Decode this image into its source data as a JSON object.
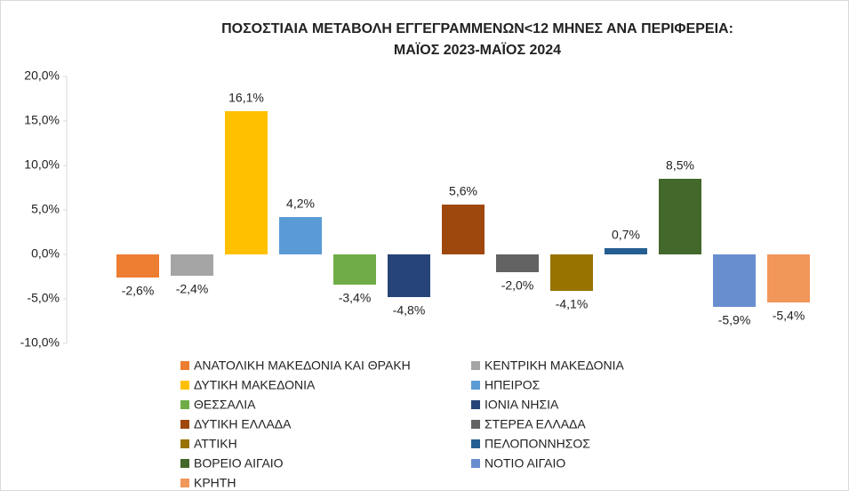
{
  "chart_data": {
    "type": "bar",
    "title": [
      "ΠΟΣΟΣΤΙΑΙΑ ΜΕΤΑΒΟΛΗ ΕΓΓΕΓΡΑΜΜΕΝΩΝ<12 ΜΗΝΕΣ ΑΝΑ ΠΕΡΙΦΕΡΕΙΑ:",
      "ΜΑΪΟΣ 2023-ΜΑΪΟΣ 2024"
    ],
    "categories": [
      null
    ],
    "ylim": [
      -10,
      20
    ],
    "yticks": [
      {
        "value": -10,
        "label": "-10,0%"
      },
      {
        "value": -5,
        "label": "-5,0%"
      },
      {
        "value": 0,
        "label": "0,0%"
      },
      {
        "value": 5,
        "label": "5,0%"
      },
      {
        "value": 10,
        "label": "10,0%"
      },
      {
        "value": 15,
        "label": "15,0%"
      },
      {
        "value": 20,
        "label": "20,0%"
      }
    ],
    "grid": false,
    "series": [
      {
        "name": "ΑΝΑΤΟΛΙΚΗ ΜΑΚΕΔΟΝΙΑ ΚΑΙ ΘΡΑΚΗ",
        "color": "#ED7D31",
        "values": [
          -2.6
        ],
        "value_labels": [
          "-2,6%"
        ]
      },
      {
        "name": "ΚΕΝΤΡΙΚΗ ΜΑΚΕΔΟΝΙΑ",
        "color": "#A5A5A5",
        "values": [
          -2.4
        ],
        "value_labels": [
          "-2,4%"
        ]
      },
      {
        "name": "ΔΥΤΙΚΗ ΜΑΚΕΔΟΝΙΑ",
        "color": "#FFC000",
        "values": [
          16.1
        ],
        "value_labels": [
          "16,1%"
        ]
      },
      {
        "name": "ΗΠΕΙΡΟΣ",
        "color": "#5B9BD5",
        "values": [
          4.2
        ],
        "value_labels": [
          "4,2%"
        ]
      },
      {
        "name": "ΘΕΣΣΑΛΙΑ",
        "color": "#70AD47",
        "values": [
          -3.4
        ],
        "value_labels": [
          "-3,4%"
        ]
      },
      {
        "name": "ΙΟΝΙΑ ΝΗΣΙΑ",
        "color": "#264478",
        "values": [
          -4.8
        ],
        "value_labels": [
          "-4,8%"
        ]
      },
      {
        "name": "ΔΥΤΙΚΗ ΕΛΛΑΔΑ",
        "color": "#9E480E",
        "values": [
          5.6
        ],
        "value_labels": [
          "5,6%"
        ]
      },
      {
        "name": "ΣΤΕΡΕΑ ΕΛΛΑΔΑ",
        "color": "#636363",
        "values": [
          -2.0
        ],
        "value_labels": [
          "-2,0%"
        ]
      },
      {
        "name": "ΑΤΤΙΚΗ",
        "color": "#997300",
        "values": [
          -4.1
        ],
        "value_labels": [
          "-4,1%"
        ]
      },
      {
        "name": "ΠΕΛΟΠΟΝΝΗΣΟΣ",
        "color": "#255E91",
        "values": [
          0.7
        ],
        "value_labels": [
          "0,7%"
        ]
      },
      {
        "name": "ΒΟΡΕΙΟ ΑΙΓΑΙΟ",
        "color": "#43682B",
        "values": [
          8.5
        ],
        "value_labels": [
          "8,5%"
        ]
      },
      {
        "name": "ΝΟΤΙΟ ΑΙΓΑΙΟ",
        "color": "#698ED0",
        "values": [
          -5.9
        ],
        "value_labels": [
          "-5,9%"
        ]
      },
      {
        "name": "ΚΡΗΤΗ",
        "color": "#F1975A",
        "values": [
          -5.4
        ],
        "value_labels": [
          "-5,4%"
        ]
      }
    ]
  }
}
